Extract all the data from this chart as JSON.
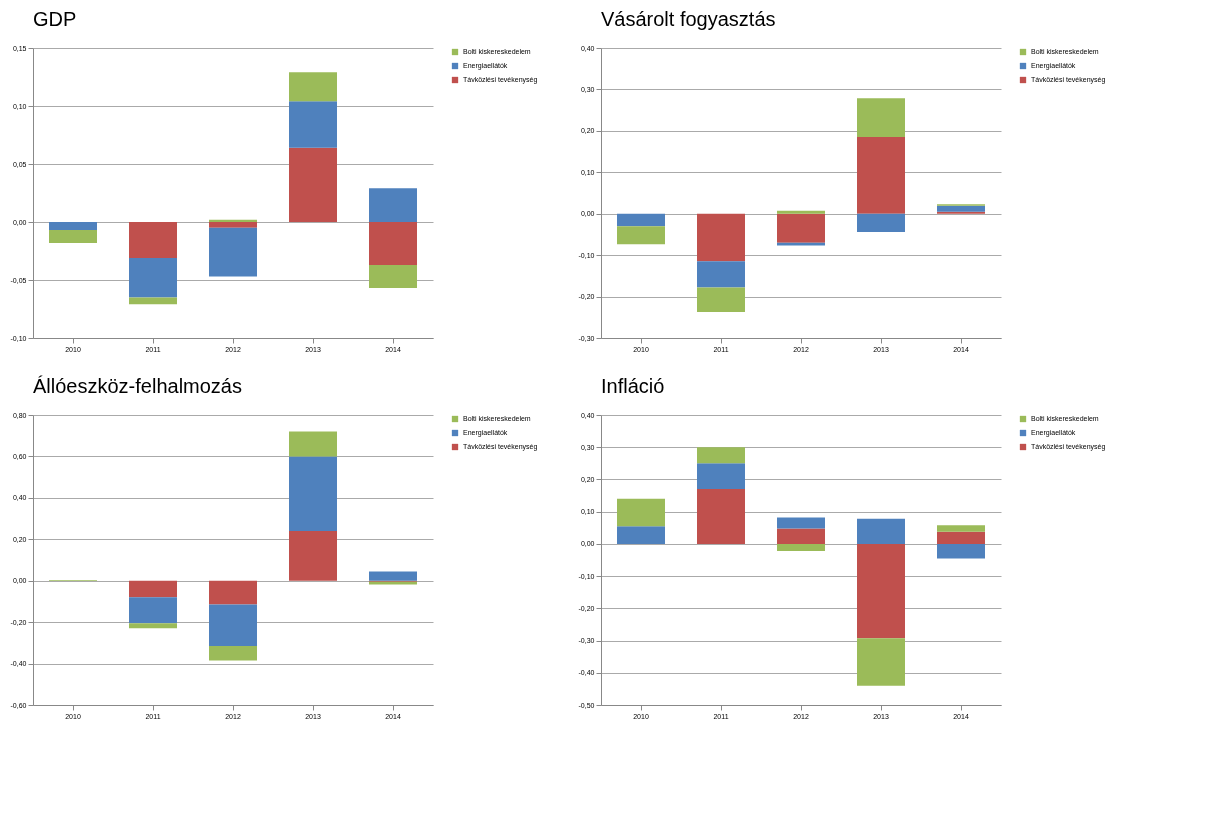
{
  "chart_data": [
    {
      "type": "bar",
      "title": "GDP",
      "categories": [
        "2010",
        "2011",
        "2012",
        "2013",
        "2014"
      ],
      "stacked": true,
      "grid": "y",
      "legend": "right",
      "ylim": [
        -0.1,
        0.15
      ],
      "yticks": [
        {
          "value": -0.1,
          "label": "-0,10"
        },
        {
          "value": -0.05,
          "label": "-0,05"
        },
        {
          "value": 0,
          "label": "0,00"
        },
        {
          "value": 0.05,
          "label": "0,05"
        },
        {
          "value": 0.1,
          "label": "0,10"
        },
        {
          "value": 0.15,
          "label": "0,15"
        }
      ],
      "series": [
        {
          "name": "Távközlési tevékenység",
          "color": "#c0504d",
          "values": [
            0,
            -0.031,
            -0.005,
            0.064,
            -0.037
          ]
        },
        {
          "name": "Energiaellátók",
          "color": "#4f81bd",
          "values": [
            -0.007,
            -0.034,
            -0.042,
            0.04,
            0.029
          ]
        },
        {
          "name": "Bolti kiskereskedelem",
          "color": "#9bbb59",
          "values": [
            -0.011,
            -0.006,
            0.002,
            0.025,
            -0.02
          ]
        }
      ]
    },
    {
      "type": "bar",
      "title": "Vásárolt fogyasztás",
      "categories": [
        "2010",
        "2011",
        "2012",
        "2013",
        "2014"
      ],
      "stacked": true,
      "grid": "y",
      "legend": "right",
      "ylim": [
        -0.3,
        0.4
      ],
      "yticks": [
        {
          "value": -0.3,
          "label": "-0,30"
        },
        {
          "value": -0.2,
          "label": "-0,20"
        },
        {
          "value": -0.1,
          "label": "-0,10"
        },
        {
          "value": 0,
          "label": "0,00"
        },
        {
          "value": 0.1,
          "label": "0,10"
        },
        {
          "value": 0.2,
          "label": "0,20"
        },
        {
          "value": 0.3,
          "label": "0,30"
        },
        {
          "value": 0.4,
          "label": "0,40"
        }
      ],
      "series": [
        {
          "name": "Távközlési tevékenység",
          "color": "#c0504d",
          "values": [
            0,
            -0.115,
            -0.07,
            0.185,
            0.005
          ]
        },
        {
          "name": "Energiaellátók",
          "color": "#4f81bd",
          "values": [
            -0.03,
            -0.063,
            -0.007,
            -0.044,
            0.014
          ]
        },
        {
          "name": "Bolti kiskereskedelem",
          "color": "#9bbb59",
          "values": [
            -0.044,
            -0.059,
            0.007,
            0.094,
            0.004
          ]
        }
      ]
    },
    {
      "type": "bar",
      "title": "Állóeszköz-felhalmozás",
      "categories": [
        "2010",
        "2011",
        "2012",
        "2013",
        "2014"
      ],
      "stacked": true,
      "grid": "y",
      "legend": "right",
      "ylim": [
        -0.6,
        0.8
      ],
      "yticks": [
        {
          "value": -0.6,
          "label": "-0,60"
        },
        {
          "value": -0.4,
          "label": "-0,40"
        },
        {
          "value": -0.2,
          "label": "-0,20"
        },
        {
          "value": 0,
          "label": "0,00"
        },
        {
          "value": 0.2,
          "label": "0,20"
        },
        {
          "value": 0.4,
          "label": "0,40"
        },
        {
          "value": 0.6,
          "label": "0,60"
        },
        {
          "value": 0.8,
          "label": "0,80"
        }
      ],
      "series": [
        {
          "name": "Távközlési tevékenység",
          "color": "#c0504d",
          "values": [
            0,
            -0.08,
            -0.115,
            0.24,
            -0.005
          ]
        },
        {
          "name": "Energiaellátók",
          "color": "#4f81bd",
          "values": [
            0,
            -0.125,
            -0.2,
            0.36,
            0.045
          ]
        },
        {
          "name": "Bolti kiskereskedelem",
          "color": "#9bbb59",
          "values": [
            0.003,
            -0.025,
            -0.07,
            0.12,
            -0.013
          ]
        }
      ]
    },
    {
      "type": "bar",
      "title": "Infláció",
      "categories": [
        "2010",
        "2011",
        "2012",
        "2013",
        "2014"
      ],
      "stacked": true,
      "grid": "y",
      "legend": "right",
      "ylim": [
        -0.5,
        0.4
      ],
      "yticks": [
        {
          "value": -0.5,
          "label": "-0,50"
        },
        {
          "value": -0.4,
          "label": "-0,40"
        },
        {
          "value": -0.3,
          "label": "-0,30"
        },
        {
          "value": -0.2,
          "label": "-0,20"
        },
        {
          "value": -0.1,
          "label": "-0,10"
        },
        {
          "value": 0,
          "label": "0,00"
        },
        {
          "value": 0.1,
          "label": "0,10"
        },
        {
          "value": 0.2,
          "label": "0,20"
        },
        {
          "value": 0.3,
          "label": "0,30"
        },
        {
          "value": 0.4,
          "label": "0,40"
        }
      ],
      "series": [
        {
          "name": "Távközlési tevékenység",
          "color": "#c0504d",
          "values": [
            0,
            0.17,
            0.048,
            -0.293,
            0.038
          ]
        },
        {
          "name": "Energiaellátók",
          "color": "#4f81bd",
          "values": [
            0.055,
            0.08,
            0.034,
            0.078,
            -0.045
          ]
        },
        {
          "name": "Bolti kiskereskedelem",
          "color": "#9bbb59",
          "values": [
            0.085,
            0.05,
            -0.022,
            -0.147,
            0.02
          ]
        }
      ]
    }
  ]
}
